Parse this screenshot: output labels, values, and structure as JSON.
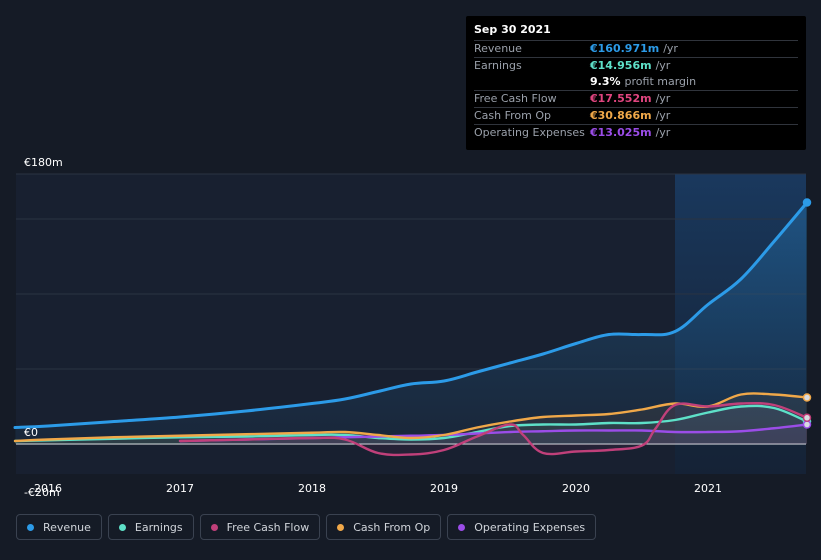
{
  "tooltip": {
    "date": "Sep 30 2021",
    "rows": [
      {
        "label": "Revenue",
        "value": "€160.971m",
        "unit": "/yr",
        "color": "#2c9be8"
      },
      {
        "label": "Earnings",
        "value": "€14.956m",
        "unit": "/yr",
        "color": "#5ee0c8"
      },
      {
        "label": "",
        "value": "9.3%",
        "unit": "profit margin",
        "color": "#ffffff"
      },
      {
        "label": "Free Cash Flow",
        "value": "€17.552m",
        "unit": "/yr",
        "color": "#e0457f"
      },
      {
        "label": "Cash From Op",
        "value": "€30.866m",
        "unit": "/yr",
        "color": "#f0a849"
      },
      {
        "label": "Operating Expenses",
        "value": "€13.025m",
        "unit": "/yr",
        "color": "#9b4de8"
      }
    ]
  },
  "legend": [
    {
      "label": "Revenue",
      "color": "#2c9be8"
    },
    {
      "label": "Earnings",
      "color": "#5ee0c8"
    },
    {
      "label": "Free Cash Flow",
      "color": "#c0407a"
    },
    {
      "label": "Cash From Op",
      "color": "#f0a849"
    },
    {
      "label": "Operating Expenses",
      "color": "#9b4de8"
    }
  ],
  "chart_data": {
    "type": "line",
    "y_tick_labels": [
      "€180m",
      "€0",
      "-€20m"
    ],
    "x_tick_labels": [
      "2016",
      "2017",
      "2018",
      "2019",
      "2020",
      "2021"
    ],
    "ylim": [
      -20,
      180
    ],
    "xlim": [
      2015.75,
      2021.75
    ],
    "grid": true,
    "legend_position": "bottom",
    "highlight_from": 2020.75,
    "series": [
      {
        "name": "Revenue",
        "color": "#2c9be8",
        "fill": true,
        "x": [
          2015.75,
          2016.0,
          2016.5,
          2017.0,
          2017.5,
          2018.0,
          2018.25,
          2018.5,
          2018.75,
          2019.0,
          2019.25,
          2019.5,
          2019.75,
          2020.0,
          2020.25,
          2020.5,
          2020.75,
          2021.0,
          2021.25,
          2021.5,
          2021.75
        ],
        "values": [
          11,
          12,
          15,
          18,
          22,
          27,
          30,
          35,
          40,
          42,
          48,
          54,
          60,
          67,
          73,
          73,
          75,
          93,
          110,
          135,
          161
        ]
      },
      {
        "name": "Earnings",
        "color": "#5ee0c8",
        "fill": false,
        "x": [
          2015.75,
          2016.0,
          2016.5,
          2017.0,
          2017.5,
          2018.0,
          2018.25,
          2018.5,
          2018.75,
          2019.0,
          2019.25,
          2019.5,
          2019.75,
          2020.0,
          2020.25,
          2020.5,
          2020.75,
          2021.0,
          2021.25,
          2021.5,
          2021.75
        ],
        "values": [
          2,
          2.5,
          3.5,
          4.5,
          5,
          6,
          6,
          4,
          3,
          4,
          8,
          12,
          13,
          13,
          14,
          14,
          16,
          21,
          25,
          24,
          15
        ]
      },
      {
        "name": "Free Cash Flow",
        "color": "#c0407a",
        "fill": false,
        "x": [
          2017.0,
          2017.5,
          2018.0,
          2018.25,
          2018.5,
          2018.75,
          2019.0,
          2019.25,
          2019.5,
          2019.6,
          2019.75,
          2020.0,
          2020.25,
          2020.5,
          2020.6,
          2020.75,
          2021.0,
          2021.25,
          2021.5,
          2021.75
        ],
        "values": [
          2,
          3,
          4,
          3,
          -6,
          -7,
          -4,
          5,
          13,
          6,
          -6,
          -5,
          -4,
          -1,
          10,
          26,
          25,
          27,
          26,
          17.5
        ]
      },
      {
        "name": "Cash From Op",
        "color": "#f0a849",
        "fill": false,
        "x": [
          2015.75,
          2016.0,
          2016.5,
          2017.0,
          2017.5,
          2018.0,
          2018.25,
          2018.5,
          2018.75,
          2019.0,
          2019.25,
          2019.5,
          2019.75,
          2020.0,
          2020.25,
          2020.5,
          2020.75,
          2021.0,
          2021.25,
          2021.5,
          2021.75
        ],
        "values": [
          2,
          3,
          4.5,
          5.5,
          6.5,
          7.5,
          8,
          6,
          4,
          6,
          11,
          15,
          18,
          19,
          20,
          23,
          27,
          25,
          33,
          33,
          31
        ]
      },
      {
        "name": "Operating Expenses",
        "color": "#9b4de8",
        "fill": false,
        "x": [
          2017.0,
          2017.5,
          2018.0,
          2018.25,
          2018.5,
          2018.75,
          2019.0,
          2019.25,
          2019.5,
          2019.75,
          2020.0,
          2020.25,
          2020.5,
          2020.75,
          2021.0,
          2021.25,
          2021.5,
          2021.75
        ],
        "values": [
          2,
          3,
          4,
          4.5,
          5,
          5.5,
          6,
          7,
          8,
          8.5,
          9,
          9,
          9,
          8,
          8,
          8.5,
          10.5,
          13
        ]
      }
    ]
  }
}
